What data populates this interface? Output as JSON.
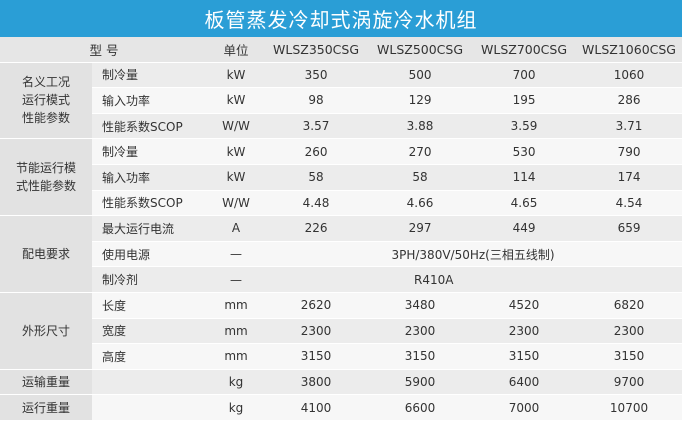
{
  "title": "板管蒸发冷却式涡旋冷水机组",
  "header": {
    "model_label": "型    号",
    "unit_label": "单位",
    "models": [
      "WLSZ350CSG",
      "WLSZ500CSG",
      "WLSZ700CSG",
      "WLSZ1060CSG"
    ]
  },
  "groups": {
    "nominal": "名义工况\n运行模式\n性能参数",
    "saving": "节能运行模\n式性能参数",
    "power": "配电要求",
    "dims": "外形尺寸",
    "transport": "运输重量",
    "operating": "运行重量"
  },
  "rows": [
    {
      "label": "制冷量",
      "unit": "kW",
      "values": [
        "350",
        "500",
        "700",
        "1060"
      ]
    },
    {
      "label": "输入功率",
      "unit": "kW",
      "values": [
        "98",
        "129",
        "195",
        "286"
      ]
    },
    {
      "label": "性能系数SCOP",
      "unit": "W/W",
      "values": [
        "3.57",
        "3.88",
        "3.59",
        "3.71"
      ]
    },
    {
      "label": "制冷量",
      "unit": "kW",
      "values": [
        "260",
        "270",
        "530",
        "790"
      ]
    },
    {
      "label": "输入功率",
      "unit": "kW",
      "values": [
        "58",
        "58",
        "114",
        "174"
      ]
    },
    {
      "label": "性能系数SCOP",
      "unit": "W/W",
      "values": [
        "4.48",
        "4.66",
        "4.65",
        "4.54"
      ]
    },
    {
      "label": "最大运行电流",
      "unit": "A",
      "values": [
        "226",
        "297",
        "449",
        "659"
      ]
    },
    {
      "label": "使用电源",
      "unit": "—",
      "span_value": "3PH/380V/50Hz(三相五线制)"
    },
    {
      "label": "制冷剂",
      "unit": "—",
      "span_value": "R410A"
    },
    {
      "label": "长度",
      "unit": "mm",
      "values": [
        "2620",
        "3480",
        "4520",
        "6820"
      ]
    },
    {
      "label": "宽度",
      "unit": "mm",
      "values": [
        "2300",
        "2300",
        "2300",
        "2300"
      ]
    },
    {
      "label": "高度",
      "unit": "mm",
      "values": [
        "3150",
        "3150",
        "3150",
        "3150"
      ]
    },
    {
      "label": "",
      "unit": "kg",
      "values": [
        "3800",
        "5900",
        "6400",
        "9700"
      ]
    },
    {
      "label": "",
      "unit": "kg",
      "values": [
        "4100",
        "6600",
        "7000",
        "10700"
      ]
    }
  ]
}
